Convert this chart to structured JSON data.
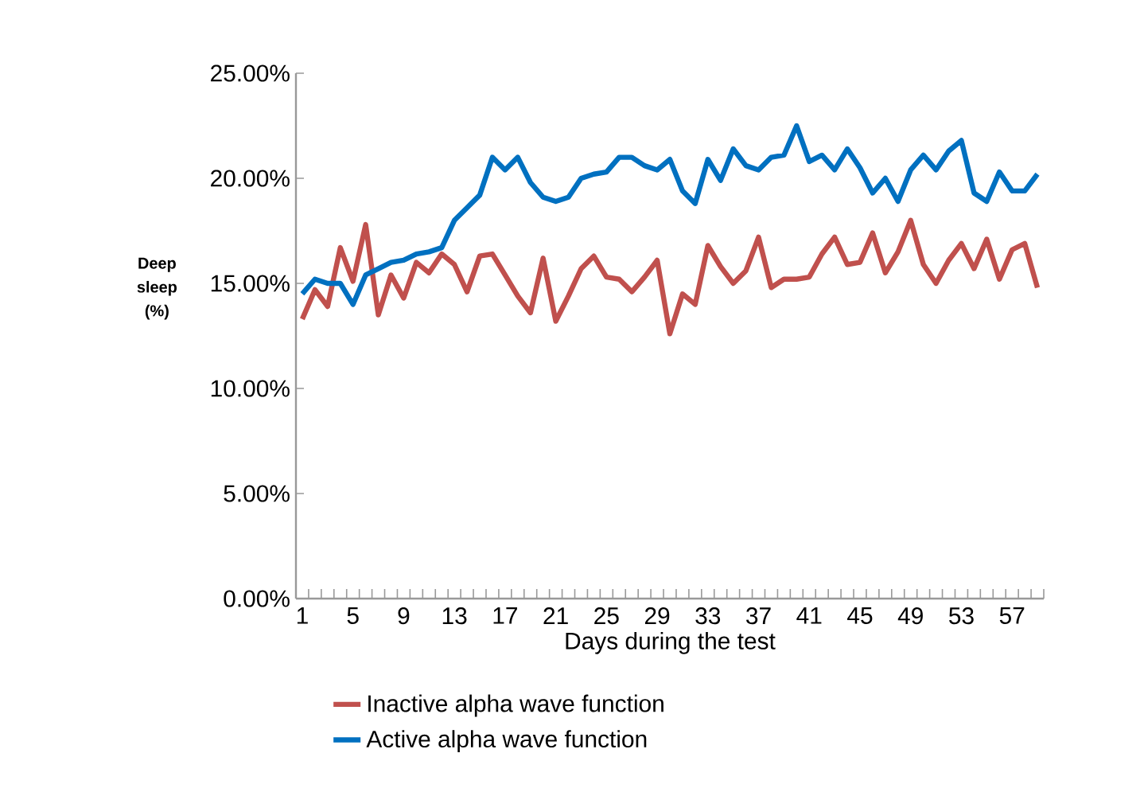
{
  "chart_data": {
    "type": "line",
    "xlabel": "Days during the test",
    "ylabel": "Deep sleep (%)",
    "categories": [
      "1",
      null,
      null,
      null,
      "5",
      null,
      null,
      null,
      "9",
      null,
      null,
      null,
      "13",
      null,
      null,
      null,
      "17",
      null,
      null,
      null,
      "21",
      null,
      null,
      null,
      "25",
      null,
      null,
      null,
      "29",
      null,
      null,
      null,
      "33",
      null,
      null,
      null,
      "37",
      null,
      null,
      null,
      "41",
      null,
      null,
      null,
      "45",
      null,
      null,
      null,
      "49",
      null,
      null,
      null,
      "53",
      null,
      null,
      null,
      "57",
      null,
      null
    ],
    "series": [
      {
        "name": "Inactive alpha wave function",
        "color": "#c0504d",
        "values": [
          13.3,
          14.7,
          13.9,
          16.7,
          15.1,
          17.8,
          13.5,
          15.4,
          14.3,
          16.0,
          15.5,
          16.4,
          15.9,
          14.6,
          16.3,
          16.4,
          15.4,
          14.4,
          13.6,
          16.2,
          13.2,
          14.4,
          15.7,
          16.3,
          15.3,
          15.2,
          14.6,
          15.3,
          16.1,
          12.6,
          14.5,
          14.0,
          16.8,
          15.8,
          15.0,
          15.6,
          17.2,
          14.8,
          15.2,
          15.2,
          15.3,
          16.4,
          17.2,
          15.9,
          16.0,
          17.4,
          15.5,
          16.5,
          18.0,
          15.9,
          15.0,
          16.1,
          16.9,
          15.7,
          17.1,
          15.2,
          16.6,
          16.9,
          14.8
        ]
      },
      {
        "name": "Active alpha wave function",
        "color": "#0070c0",
        "values": [
          14.5,
          15.2,
          15.0,
          15.0,
          14.0,
          15.4,
          15.7,
          16.0,
          16.1,
          16.4,
          16.5,
          16.7,
          18.0,
          18.6,
          19.2,
          21.0,
          20.4,
          21.0,
          19.8,
          19.1,
          18.9,
          19.1,
          20.0,
          20.2,
          20.3,
          21.0,
          21.0,
          20.6,
          20.4,
          20.9,
          19.4,
          18.8,
          20.9,
          19.9,
          21.4,
          20.6,
          20.4,
          21.0,
          21.1,
          22.5,
          20.8,
          21.1,
          20.4,
          21.4,
          20.5,
          19.3,
          20.0,
          18.9,
          20.4,
          21.1,
          20.4,
          21.3,
          21.8,
          19.3,
          18.9,
          20.3,
          19.4,
          19.4,
          20.2
        ]
      }
    ],
    "ylim": [
      0,
      25
    ],
    "yticks": [
      {
        "value": 0,
        "label": "0.00%"
      },
      {
        "value": 5,
        "label": "5.00%"
      },
      {
        "value": 10,
        "label": "10.00%"
      },
      {
        "value": 15,
        "label": "15.00%"
      },
      {
        "value": 20,
        "label": "20.00%"
      },
      {
        "value": 25,
        "label": "25.00%"
      }
    ],
    "grid": false,
    "legend": "bottom",
    "marker": "none",
    "line_style": "solid"
  }
}
